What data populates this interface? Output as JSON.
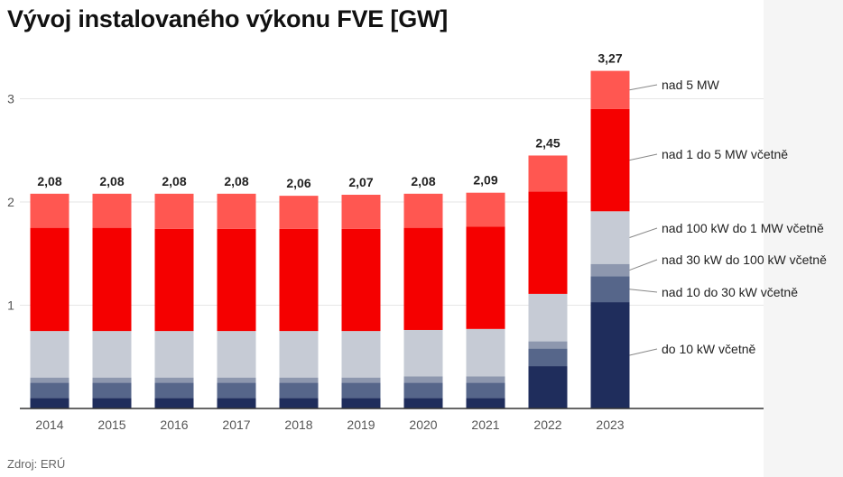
{
  "title": "Vývoj instalovaného výkonu FVE [GW]",
  "source": "Zdroj: ERÚ",
  "colors": {
    "do_10kW": "#1f2d5c",
    "10_30kW": "#56668a",
    "30_100kW": "#8d97ae",
    "100kW_1MW": "#c6cbd5",
    "1_5MW": "#f50000",
    "nad_5MW": "#ff5751",
    "grid": "#e6e6e6",
    "axis": "#333333",
    "side_panel": "#f5f5f5"
  },
  "chart_data": {
    "type": "bar",
    "stacked": true,
    "title": "Vývoj instalovaného výkonu FVE [GW]",
    "xlabel": "",
    "ylabel": "",
    "ylim": [
      0,
      3.5
    ],
    "yticks": [
      1,
      2,
      3
    ],
    "grid": true,
    "legend": "right, labels attached to the 2023 bar",
    "categories": [
      "2014",
      "2015",
      "2016",
      "2017",
      "2018",
      "2019",
      "2020",
      "2021",
      "2022",
      "2023"
    ],
    "totals": [
      "2,08",
      "2,08",
      "2,08",
      "2,08",
      "2,06",
      "2,07",
      "2,08",
      "2,09",
      "2,45",
      "3,27"
    ],
    "series": [
      {
        "name": "do 10 kW včetně",
        "color_key": "do_10kW",
        "values": [
          0.1,
          0.1,
          0.1,
          0.1,
          0.1,
          0.1,
          0.1,
          0.1,
          0.41,
          1.03
        ]
      },
      {
        "name": "nad 10 do 30 kW včetně",
        "color_key": "10_30kW",
        "values": [
          0.15,
          0.15,
          0.15,
          0.15,
          0.15,
          0.15,
          0.15,
          0.15,
          0.17,
          0.25
        ]
      },
      {
        "name": "nad 30 kW do 100 kW včetně",
        "color_key": "30_100kW",
        "values": [
          0.05,
          0.05,
          0.05,
          0.05,
          0.05,
          0.05,
          0.06,
          0.06,
          0.07,
          0.12
        ]
      },
      {
        "name": "nad 100 kW do 1 MW včetně",
        "color_key": "100kW_1MW",
        "values": [
          0.45,
          0.45,
          0.45,
          0.45,
          0.45,
          0.45,
          0.45,
          0.46,
          0.46,
          0.51
        ]
      },
      {
        "name": "nad 1 do 5 MW včetně",
        "color_key": "1_5MW",
        "values": [
          1.0,
          1.0,
          0.99,
          0.99,
          0.99,
          0.99,
          0.99,
          0.99,
          0.99,
          0.99
        ]
      },
      {
        "name": "nad 5 MW",
        "color_key": "nad_5MW",
        "values": [
          0.33,
          0.33,
          0.34,
          0.34,
          0.32,
          0.33,
          0.33,
          0.33,
          0.35,
          0.37
        ]
      }
    ]
  }
}
